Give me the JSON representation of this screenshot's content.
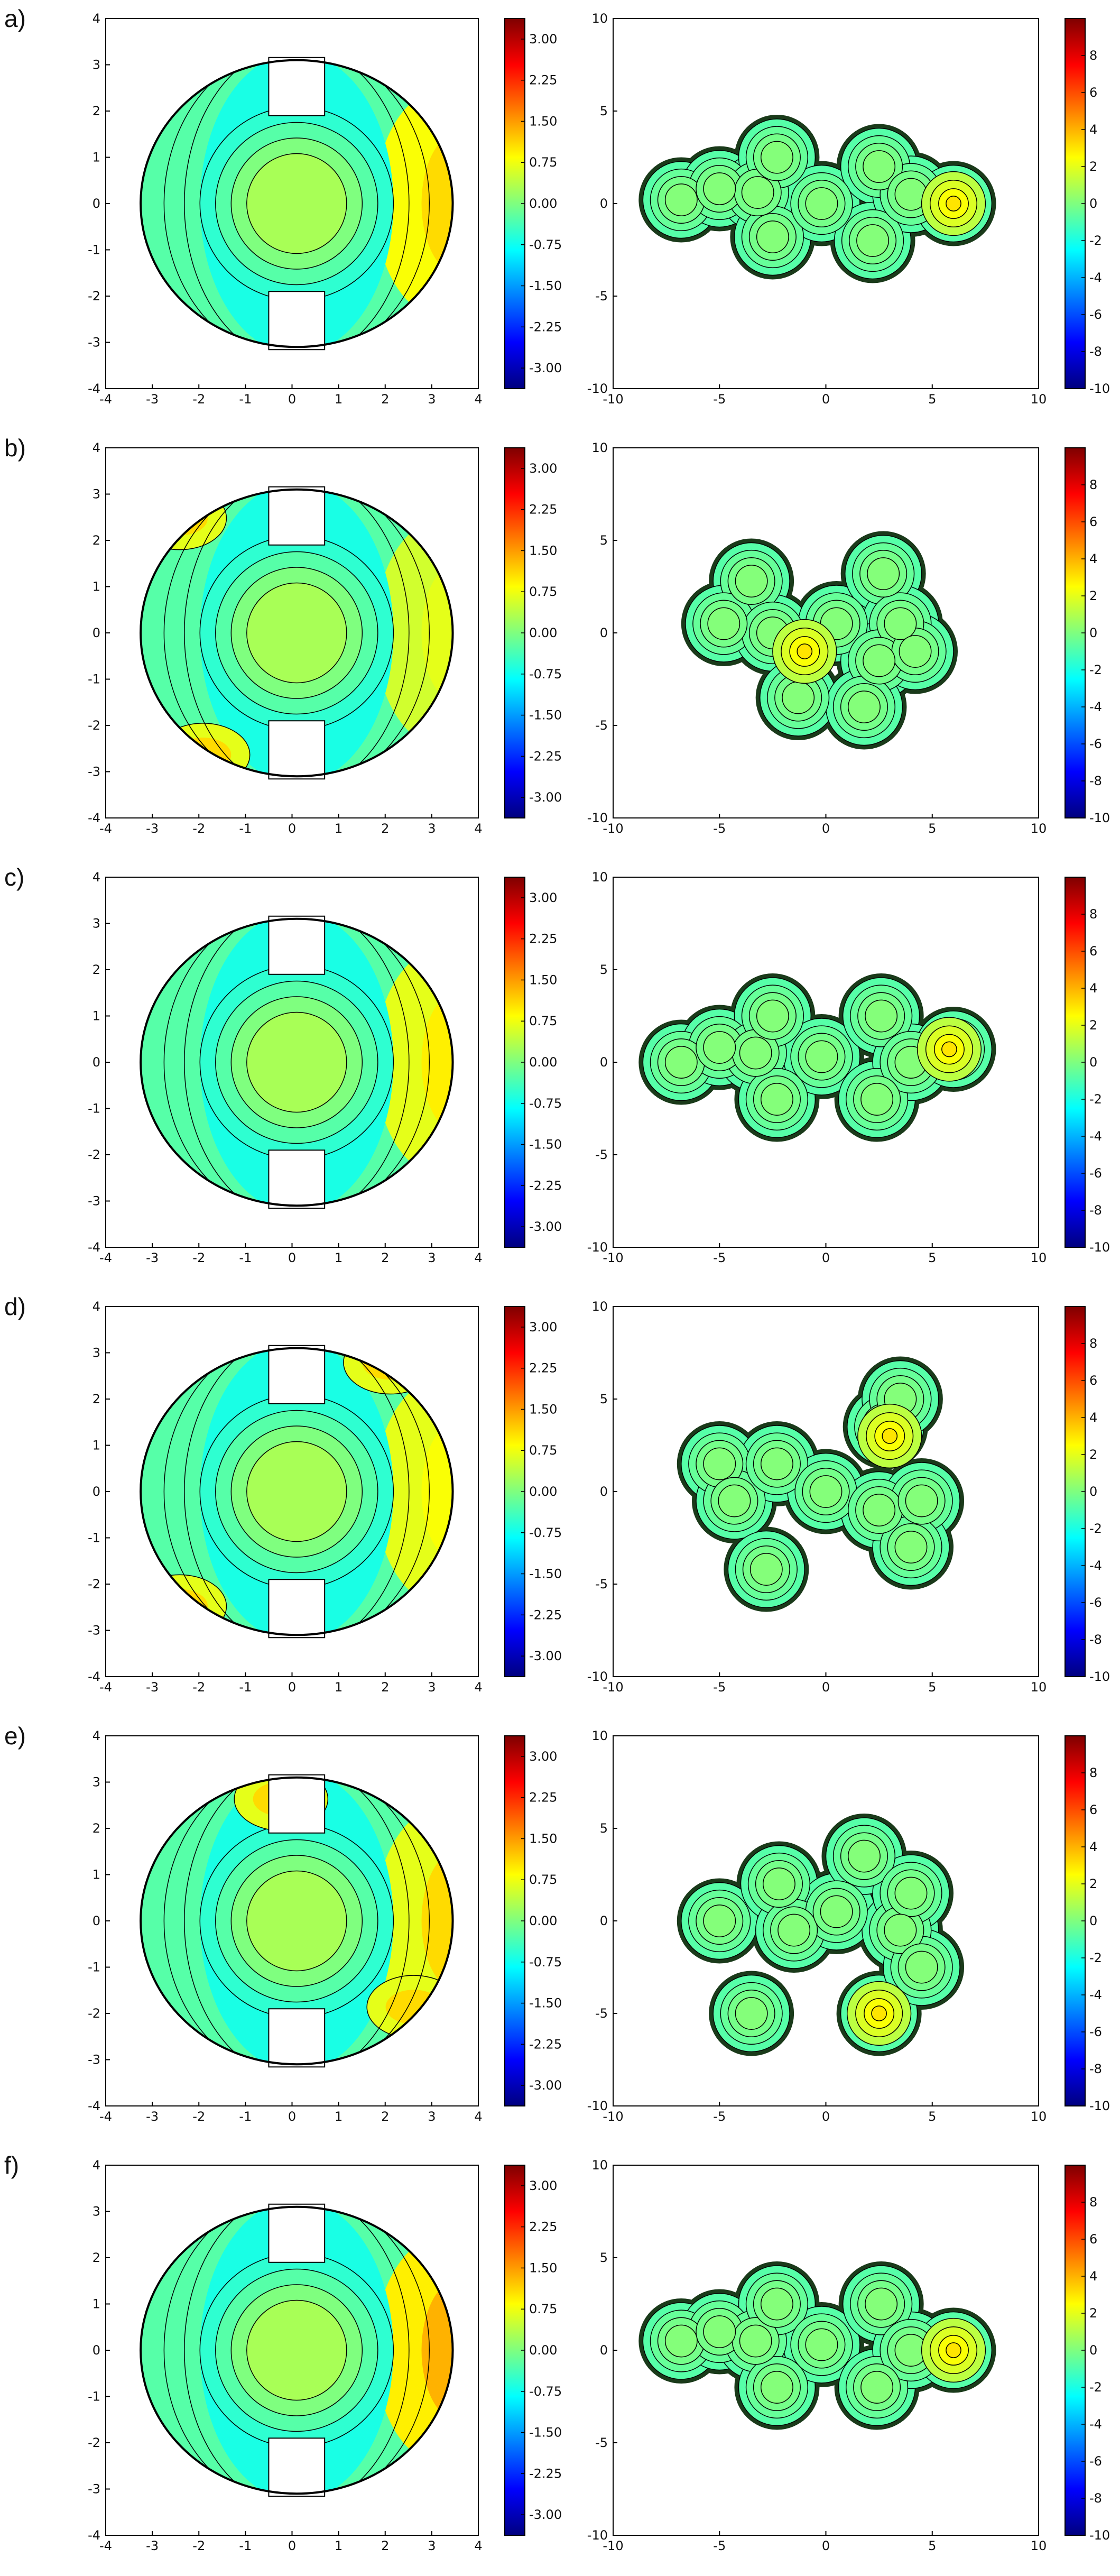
{
  "colors": {
    "contour_line": "#000000",
    "axes": "#000000",
    "colormap": [
      "#00007f",
      "#0000ff",
      "#007fff",
      "#00ffff",
      "#7fff7f",
      "#ffff00",
      "#ff7f00",
      "#ff0000",
      "#7f0000"
    ]
  },
  "panels": [
    {
      "label": "a)"
    },
    {
      "label": "b)"
    },
    {
      "label": "c)"
    },
    {
      "label": "d)"
    },
    {
      "label": "e)"
    },
    {
      "label": "f)"
    }
  ],
  "chart_data": [
    {
      "type": "heatmap",
      "role": "left contour map",
      "xlim": [
        -4,
        4
      ],
      "ylim": [
        -4,
        4
      ],
      "xticks": [
        "-4",
        "-3",
        "-2",
        "-1",
        "0",
        "1",
        "2",
        "3",
        "4"
      ],
      "yticks": [
        "-4",
        "-3",
        "-2",
        "-1",
        "0",
        "1",
        "2",
        "3",
        "4"
      ],
      "colorbar_range": [
        -3.375,
        3.375
      ],
      "colorbar_ticks": [
        "3.00",
        "2.25",
        "1.50",
        "0.75",
        "0.00",
        "-0.75",
        "-1.50",
        "-2.25",
        "-3.00"
      ],
      "colorbar_tick_values": [
        3.0,
        2.25,
        1.5,
        0.75,
        0.0,
        -0.75,
        -1.5,
        -2.25,
        -3.0
      ]
    },
    {
      "type": "heatmap",
      "role": "right contour map",
      "xlim": [
        -10,
        10
      ],
      "ylim": [
        -10,
        10
      ],
      "xticks": [
        "-10",
        "-5",
        "0",
        "5",
        "10"
      ],
      "yticks": [
        "-10",
        "-5",
        "0",
        "5",
        "10"
      ],
      "colorbar_range": [
        -10,
        10
      ],
      "colorbar_ticks": [
        "8",
        "6",
        "4",
        "2",
        "0",
        "-2",
        "-4",
        "-6",
        "-8",
        "-10"
      ],
      "colorbar_tick_values": [
        8,
        6,
        4,
        2,
        0,
        -2,
        -4,
        -6,
        -8,
        -10
      ]
    }
  ]
}
